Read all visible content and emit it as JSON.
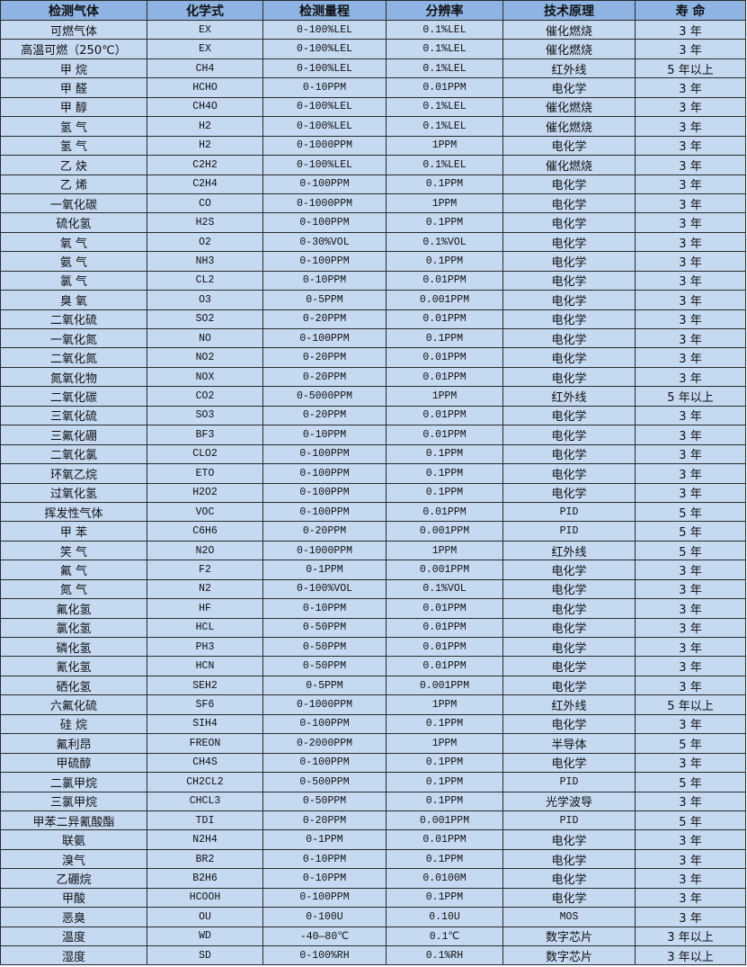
{
  "colors": {
    "header_bg": "#8db4e2",
    "row_bg": "#c5d9f1",
    "border": "#2b2b2b"
  },
  "headers": [
    "检测气体",
    "化学式",
    "检测量程",
    "分辨率",
    "技术原理",
    "寿 命"
  ],
  "rows": [
    [
      "可燃气体",
      "EX",
      "0-100%LEL",
      "0.1%LEL",
      "催化燃烧",
      "3 年"
    ],
    [
      "高温可燃（250℃）",
      "EX",
      "0-100%LEL",
      "0.1%LEL",
      "催化燃烧",
      "3 年"
    ],
    [
      "甲 烷",
      "CH4",
      "0-100%LEL",
      "0.1%LEL",
      "红外线",
      "5 年以上"
    ],
    [
      "甲 醛",
      "HCHO",
      "0-10PPM",
      "0.01PPM",
      "电化学",
      "3 年"
    ],
    [
      "甲 醇",
      "CH4O",
      "0-100%LEL",
      "0.1%LEL",
      "催化燃烧",
      "3 年"
    ],
    [
      "氢 气",
      "H2",
      "0-100%LEL",
      "0.1%LEL",
      "催化燃烧",
      "3 年"
    ],
    [
      "氢 气",
      "H2",
      "0-1000PPM",
      "1PPM",
      "电化学",
      "3 年"
    ],
    [
      "乙 炔",
      "C2H2",
      "0-100%LEL",
      "0.1%LEL",
      "催化燃烧",
      "3 年"
    ],
    [
      "乙 烯",
      "C2H4",
      "0-100PPM",
      "0.1PPM",
      "电化学",
      "3 年"
    ],
    [
      "一氧化碳",
      "CO",
      "0-1000PPM",
      "1PPM",
      "电化学",
      "3 年"
    ],
    [
      "硫化氢",
      "H2S",
      "0-100PPM",
      "0.1PPM",
      "电化学",
      "3 年"
    ],
    [
      "氧 气",
      "O2",
      "0-30%VOL",
      "0.1%VOL",
      "电化学",
      "3 年"
    ],
    [
      "氨 气",
      "NH3",
      "0-100PPM",
      "0.1PPM",
      "电化学",
      "3 年"
    ],
    [
      "氯 气",
      "CL2",
      "0-10PPM",
      "0.01PPM",
      "电化学",
      "3 年"
    ],
    [
      "臭 氧",
      "O3",
      "0-5PPM",
      "0.001PPM",
      "电化学",
      "3 年"
    ],
    [
      "二氧化硫",
      "SO2",
      "0-20PPM",
      "0.01PPM",
      "电化学",
      "3 年"
    ],
    [
      "一氧化氮",
      "NO",
      "0-100PPM",
      "0.1PPM",
      "电化学",
      "3 年"
    ],
    [
      "二氧化氮",
      "NO2",
      "0-20PPM",
      "0.01PPM",
      "电化学",
      "3 年"
    ],
    [
      "氮氧化物",
      "NOX",
      "0-20PPM",
      "0.01PPM",
      "电化学",
      "3 年"
    ],
    [
      "二氧化碳",
      "CO2",
      "0-5000PPM",
      "1PPM",
      "红外线",
      "5 年以上"
    ],
    [
      "三氧化硫",
      "SO3",
      "0-20PPM",
      "0.01PPM",
      "电化学",
      "3 年"
    ],
    [
      "三氟化硼",
      "BF3",
      "0-10PPM",
      "0.01PPM",
      "电化学",
      "3 年"
    ],
    [
      "二氧化氯",
      "CLO2",
      "0-100PPM",
      "0.1PPM",
      "电化学",
      "3 年"
    ],
    [
      "环氧乙烷",
      "ETO",
      "0-100PPM",
      "0.1PPM",
      "电化学",
      "3 年"
    ],
    [
      "过氧化氢",
      "H2O2",
      "0-100PPM",
      "0.1PPM",
      "电化学",
      "3 年"
    ],
    [
      "挥发性气体",
      "VOC",
      "0-100PPM",
      "0.01PPM",
      "PID",
      "5 年"
    ],
    [
      "甲 苯",
      "C6H6",
      "0-20PPM",
      "0.001PPM",
      "PID",
      "5 年"
    ],
    [
      "笑 气",
      "N2O",
      "0-1000PPM",
      "1PPM",
      "红外线",
      "5 年"
    ],
    [
      "氟 气",
      "F2",
      "0-1PPM",
      "0.001PPM",
      "电化学",
      "3 年"
    ],
    [
      "氮 气",
      "N2",
      "0-100%VOL",
      "0.1%VOL",
      "电化学",
      "3 年"
    ],
    [
      "氟化氢",
      "HF",
      "0-10PPM",
      "0.01PPM",
      "电化学",
      "3 年"
    ],
    [
      "氯化氢",
      "HCL",
      "0-50PPM",
      "0.01PPM",
      "电化学",
      "3 年"
    ],
    [
      "磷化氢",
      "PH3",
      "0-50PPM",
      "0.01PPM",
      "电化学",
      "3 年"
    ],
    [
      "氰化氢",
      "HCN",
      "0-50PPM",
      "0.01PPM",
      "电化学",
      "3 年"
    ],
    [
      "硒化氢",
      "SEH2",
      "0-5PPM",
      "0.001PPM",
      "电化学",
      "3 年"
    ],
    [
      "六氟化硫",
      "SF6",
      "0-1000PPM",
      "1PPM",
      "红外线",
      "5 年以上"
    ],
    [
      "硅 烷",
      "SIH4",
      "0-100PPM",
      "0.1PPM",
      "电化学",
      "3 年"
    ],
    [
      "氟利昂",
      "FREON",
      "0-2000PPM",
      "1PPM",
      "半导体",
      "5 年"
    ],
    [
      "甲硫醇",
      "CH4S",
      "0-100PPM",
      "0.1PPM",
      "电化学",
      "3 年"
    ],
    [
      "二氯甲烷",
      "CH2CL2",
      "0-500PPM",
      "0.1PPM",
      "PID",
      "5 年"
    ],
    [
      "三氯甲烷",
      "CHCL3",
      "0-50PPM",
      "0.1PPM",
      "光学波导",
      "3 年"
    ],
    [
      "甲苯二异氰酸酯",
      "TDI",
      "0-20PPM",
      "0.001PPM",
      "PID",
      "5 年"
    ],
    [
      "联氨",
      "N2H4",
      "0-1PPM",
      "0.01PPM",
      "电化学",
      "3 年"
    ],
    [
      "溴气",
      "BR2",
      "0-10PPM",
      "0.1PPM",
      "电化学",
      "3 年"
    ],
    [
      "乙硼烷",
      "B2H6",
      "0-10PPM",
      "0.0100M",
      "电化学",
      "3 年"
    ],
    [
      "甲酸",
      "HCOOH",
      "0-100PPM",
      "0.1PPM",
      "电化学",
      "3 年"
    ],
    [
      "恶臭",
      "OU",
      "0-100U",
      "0.10U",
      "MOS",
      "3 年"
    ],
    [
      "温度",
      "WD",
      "-40—80℃",
      "0.1℃",
      "数字芯片",
      "3 年以上"
    ],
    [
      "湿度",
      "SD",
      "0-100%RH",
      "0.1%RH",
      "数字芯片",
      "3 年以上"
    ]
  ]
}
